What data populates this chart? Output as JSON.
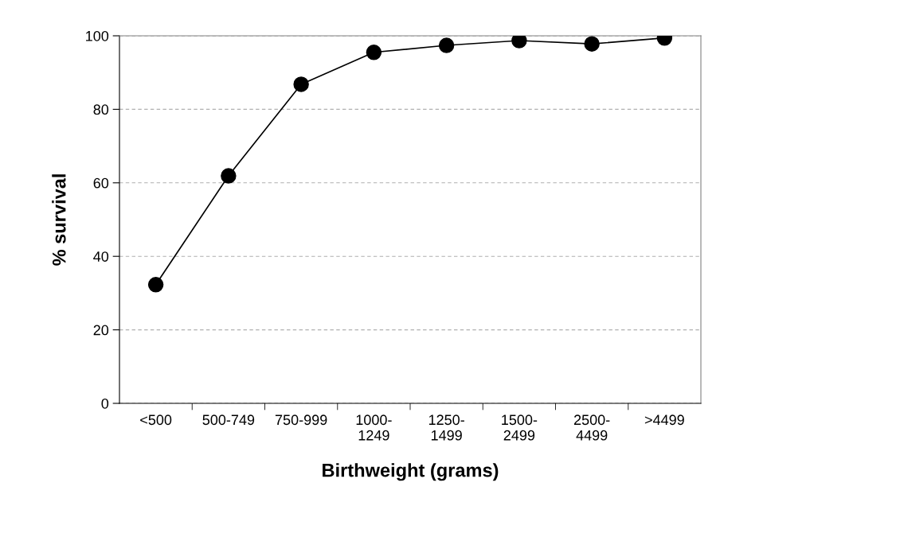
{
  "chart_data": {
    "type": "line",
    "xlabel": "Birthweight (grams)",
    "ylabel": "% survival",
    "categories": [
      "<500",
      "500-749",
      "750-999",
      "1000-\n1249",
      "1250-\n1499",
      "1500-\n2499",
      "2500-\n4499",
      ">4499"
    ],
    "series": [
      {
        "color": "#000000",
        "values": [
          32.3,
          61.9,
          86.8,
          95.5,
          97.4,
          98.7,
          97.8,
          99.4
        ]
      }
    ],
    "ylim": [
      0,
      100
    ],
    "yticks": [
      0,
      20,
      40,
      60,
      80,
      100
    ],
    "grid": "y",
    "marker": "circle",
    "line_style": "solid"
  }
}
